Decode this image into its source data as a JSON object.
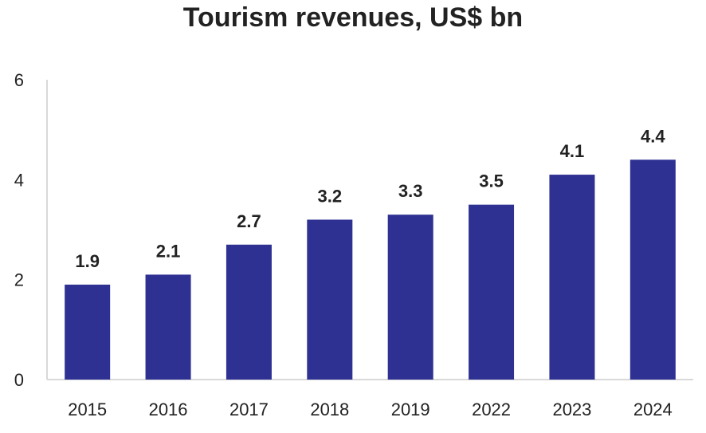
{
  "chart_data": {
    "type": "bar",
    "title": "Tourism revenues, US$ bn",
    "xlabel": "",
    "ylabel": "",
    "categories": [
      "2015",
      "2016",
      "2017",
      "2018",
      "2019",
      "2022",
      "2023",
      "2024"
    ],
    "values": [
      1.9,
      2.1,
      2.7,
      3.2,
      3.3,
      3.5,
      4.1,
      4.4
    ],
    "data_labels": [
      "1.9",
      "2.1",
      "2.7",
      "3.2",
      "3.3",
      "3.5",
      "4.1",
      "4.4"
    ],
    "ylim": [
      0,
      6
    ],
    "yticks": [
      0,
      2,
      4,
      6
    ],
    "ytick_labels": [
      "0",
      "2",
      "4",
      "6"
    ],
    "grid": false,
    "legend": "none",
    "bar_color": "#2e3192",
    "axis_color": "#d9d9d9"
  }
}
